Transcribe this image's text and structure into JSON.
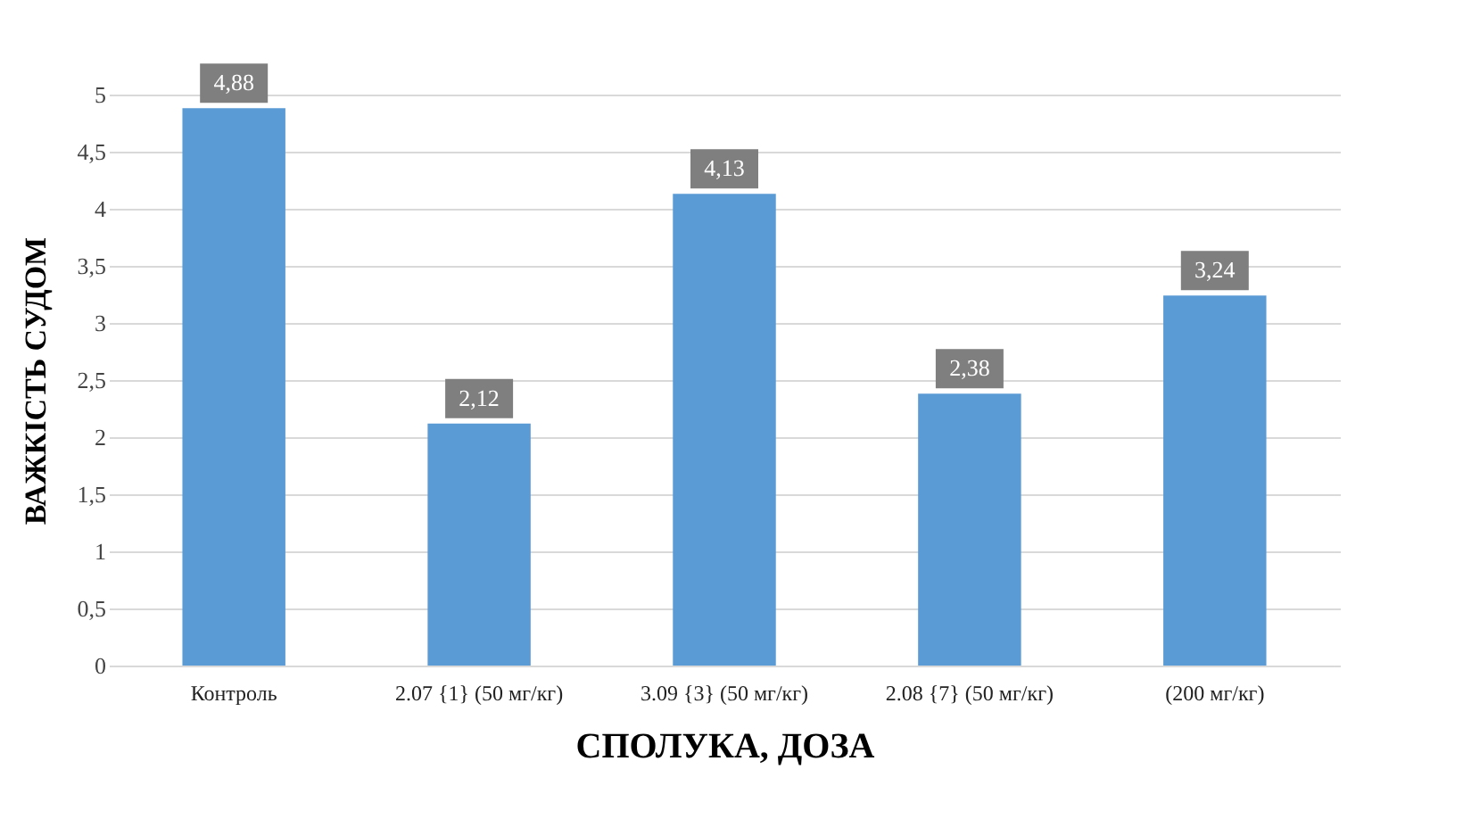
{
  "chart_data": {
    "type": "bar",
    "xlabel": "СПОЛУКА, ДОЗА",
    "ylabel": "ВАЖКІСТЬ СУДОМ",
    "categories": [
      "Контроль",
      "2.07 {1} (50 мг/кг)",
      "3.09 {3} (50 мг/кг)",
      "2.08 {7} (50 мг/кг)",
      "(200 мг/кг)"
    ],
    "values": [
      4.88,
      2.12,
      4.13,
      2.38,
      3.24
    ],
    "value_labels": [
      "4,88",
      "2,12",
      "4,13",
      "2,38",
      "3,24"
    ],
    "color": "#5b9bd5",
    "ylim": [
      0,
      5
    ],
    "yticks": [
      0,
      {
        "value": 0.5,
        "label": "0,5"
      },
      1,
      {
        "value": 1.5,
        "label": "1,5"
      },
      2,
      {
        "value": 2.5,
        "label": "2,5"
      },
      3,
      {
        "value": 3.5,
        "label": "3,5"
      },
      4,
      {
        "value": 4.5,
        "label": "4,5"
      },
      5
    ],
    "grid": "y"
  }
}
